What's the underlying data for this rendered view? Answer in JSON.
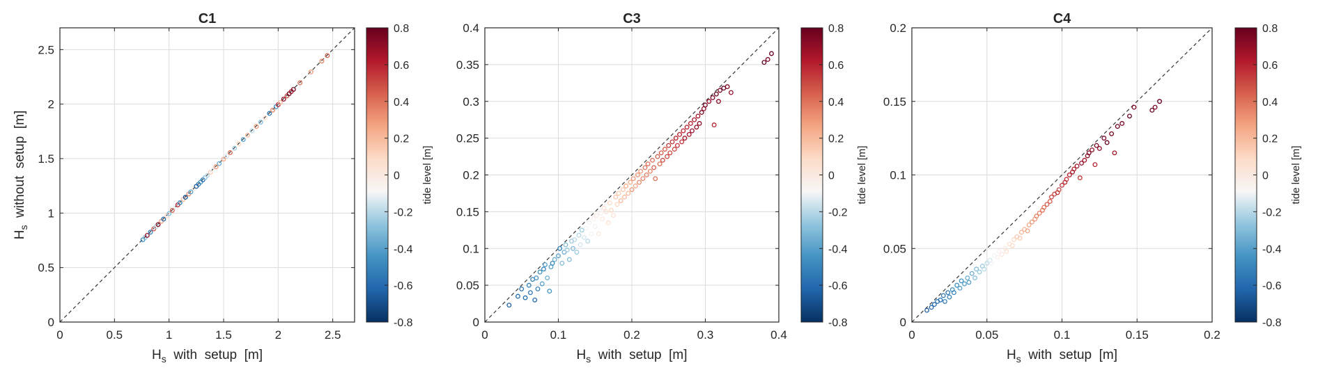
{
  "figure": {
    "colorbar": {
      "label": "tide level [m]",
      "range": [
        -0.8,
        0.8
      ],
      "ticks": [
        "-0.8",
        "-0.6",
        "-0.4",
        "-0.2",
        "0",
        "0.2",
        "0.4",
        "0.6",
        "0.8"
      ],
      "colormap": [
        "#053061",
        "#2166ac",
        "#4393c3",
        "#92c5de",
        "#f7f7f7",
        "#fddbc7",
        "#f4a582",
        "#d6604d",
        "#b2182b",
        "#67001f"
      ]
    }
  },
  "chart_data": [
    {
      "type": "scatter",
      "title": "C1",
      "xlabel": "Hs with setup [m]",
      "ylabel": "Hs without setup [m]",
      "xlim": [
        0,
        2.7
      ],
      "ylim": [
        0,
        2.7
      ],
      "xticks": [
        "0",
        "0.5",
        "1",
        "1.5",
        "2",
        "2.5"
      ],
      "yticks": [
        "0",
        "0.5",
        "1",
        "1.5",
        "2",
        "2.5"
      ],
      "xtick_values": [
        0,
        0.5,
        1,
        1.5,
        2,
        2.5
      ],
      "ytick_values": [
        0,
        0.5,
        1,
        1.5,
        2,
        2.5
      ],
      "grid": true,
      "reference_line": "y = x",
      "points": [
        [
          0.76,
          0.755,
          -0.45
        ],
        [
          0.78,
          0.775,
          -0.3
        ],
        [
          0.8,
          0.795,
          0.7
        ],
        [
          0.83,
          0.825,
          -0.5
        ],
        [
          0.86,
          0.855,
          0.5
        ],
        [
          0.88,
          0.875,
          -0.2
        ],
        [
          0.9,
          0.895,
          0.75
        ],
        [
          0.93,
          0.925,
          0.3
        ],
        [
          0.95,
          0.945,
          -0.6
        ],
        [
          0.98,
          0.975,
          0.1
        ],
        [
          1.0,
          0.995,
          -0.3
        ],
        [
          1.03,
          1.025,
          0.45
        ],
        [
          1.06,
          1.055,
          -0.1
        ],
        [
          1.08,
          1.075,
          0.6
        ],
        [
          1.1,
          1.095,
          -0.5
        ],
        [
          1.13,
          1.125,
          0.2
        ],
        [
          1.15,
          1.145,
          -0.7
        ],
        [
          1.18,
          1.175,
          0.35
        ],
        [
          1.2,
          1.195,
          -0.4
        ],
        [
          1.23,
          1.225,
          0.0
        ],
        [
          1.25,
          1.245,
          -0.65
        ],
        [
          1.27,
          1.265,
          -0.55
        ],
        [
          1.29,
          1.285,
          -0.45
        ],
        [
          1.31,
          1.305,
          -0.6
        ],
        [
          1.33,
          1.325,
          -0.3
        ],
        [
          1.35,
          1.345,
          -0.2
        ],
        [
          1.38,
          1.375,
          0.15
        ],
        [
          1.4,
          1.395,
          -0.1
        ],
        [
          1.43,
          1.425,
          0.3
        ],
        [
          1.46,
          1.455,
          -0.35
        ],
        [
          1.5,
          1.495,
          0.25
        ],
        [
          1.53,
          1.525,
          -0.15
        ],
        [
          1.56,
          1.555,
          0.4
        ],
        [
          1.6,
          1.595,
          -0.25
        ],
        [
          1.64,
          1.635,
          0.1
        ],
        [
          1.68,
          1.675,
          -0.4
        ],
        [
          1.72,
          1.715,
          0.2
        ],
        [
          1.76,
          1.755,
          -0.2
        ],
        [
          1.8,
          1.795,
          0.3
        ],
        [
          1.84,
          1.835,
          -0.3
        ],
        [
          1.88,
          1.875,
          0.05
        ],
        [
          1.92,
          1.915,
          -0.55
        ],
        [
          1.95,
          1.945,
          0.35
        ],
        [
          1.98,
          1.975,
          -0.45
        ],
        [
          2.0,
          1.995,
          0.6
        ],
        [
          2.02,
          2.015,
          0.2
        ],
        [
          2.05,
          2.045,
          0.7
        ],
        [
          2.08,
          2.075,
          0.5
        ],
        [
          2.1,
          2.095,
          0.8
        ],
        [
          2.12,
          2.115,
          0.65
        ],
        [
          2.14,
          2.135,
          0.75
        ],
        [
          2.2,
          2.195,
          0.4
        ],
        [
          2.3,
          2.295,
          0.3
        ],
        [
          2.4,
          2.395,
          0.35
        ],
        [
          2.45,
          2.445,
          0.45
        ]
      ]
    },
    {
      "type": "scatter",
      "title": "C3",
      "xlabel": "Hs with setup [m]",
      "ylabel": "",
      "xlim": [
        0,
        0.4
      ],
      "ylim": [
        0,
        0.4
      ],
      "xticks": [
        "0",
        "0.1",
        "0.2",
        "0.3",
        "0.4"
      ],
      "yticks": [
        "0",
        "0.05",
        "0.1",
        "0.15",
        "0.2",
        "0.25",
        "0.3",
        "0.35",
        "0.4"
      ],
      "xtick_values": [
        0,
        0.1,
        0.2,
        0.3,
        0.4
      ],
      "ytick_values": [
        0,
        0.05,
        0.1,
        0.15,
        0.2,
        0.25,
        0.3,
        0.35,
        0.4
      ],
      "grid": true,
      "reference_line": "y = x",
      "points": [
        [
          0.033,
          0.023,
          -0.65
        ],
        [
          0.045,
          0.035,
          -0.6
        ],
        [
          0.05,
          0.045,
          -0.55
        ],
        [
          0.055,
          0.033,
          -0.6
        ],
        [
          0.06,
          0.05,
          -0.5
        ],
        [
          0.062,
          0.04,
          -0.55
        ],
        [
          0.065,
          0.058,
          -0.5
        ],
        [
          0.068,
          0.03,
          -0.6
        ],
        [
          0.07,
          0.06,
          -0.45
        ],
        [
          0.072,
          0.045,
          -0.5
        ],
        [
          0.075,
          0.068,
          -0.45
        ],
        [
          0.078,
          0.052,
          -0.4
        ],
        [
          0.08,
          0.072,
          -0.5
        ],
        [
          0.082,
          0.078,
          -0.4
        ],
        [
          0.085,
          0.06,
          -0.35
        ],
        [
          0.088,
          0.042,
          -0.45
        ],
        [
          0.09,
          0.075,
          -0.4
        ],
        [
          0.092,
          0.08,
          -0.5
        ],
        [
          0.095,
          0.085,
          -0.35
        ],
        [
          0.1,
          0.09,
          -0.4
        ],
        [
          0.102,
          0.1,
          -0.5
        ],
        [
          0.105,
          0.08,
          -0.3
        ],
        [
          0.108,
          0.095,
          -0.35
        ],
        [
          0.11,
          0.105,
          -0.3
        ],
        [
          0.112,
          0.098,
          -0.25
        ],
        [
          0.115,
          0.085,
          -0.3
        ],
        [
          0.118,
          0.11,
          -0.25
        ],
        [
          0.12,
          0.1,
          -0.3
        ],
        [
          0.122,
          0.112,
          -0.2
        ],
        [
          0.125,
          0.095,
          -0.25
        ],
        [
          0.128,
          0.118,
          -0.2
        ],
        [
          0.13,
          0.105,
          -0.15
        ],
        [
          0.132,
          0.125,
          -0.25
        ],
        [
          0.135,
          0.115,
          -0.15
        ],
        [
          0.138,
          0.128,
          -0.1
        ],
        [
          0.14,
          0.11,
          -0.2
        ],
        [
          0.142,
          0.135,
          -0.1
        ],
        [
          0.145,
          0.12,
          -0.1
        ],
        [
          0.148,
          0.14,
          -0.05
        ],
        [
          0.15,
          0.13,
          -0.05
        ],
        [
          0.152,
          0.145,
          0.0
        ],
        [
          0.155,
          0.12,
          0.0
        ],
        [
          0.158,
          0.148,
          -0.05
        ],
        [
          0.16,
          0.14,
          0.0
        ],
        [
          0.162,
          0.155,
          0.05
        ],
        [
          0.165,
          0.15,
          0.05
        ],
        [
          0.168,
          0.135,
          0.05
        ],
        [
          0.17,
          0.162,
          0.1
        ],
        [
          0.172,
          0.152,
          0.1
        ],
        [
          0.175,
          0.145,
          0.05
        ],
        [
          0.178,
          0.17,
          0.15
        ],
        [
          0.18,
          0.16,
          0.1
        ],
        [
          0.182,
          0.175,
          0.15
        ],
        [
          0.185,
          0.165,
          0.2
        ],
        [
          0.188,
          0.18,
          0.15
        ],
        [
          0.19,
          0.17,
          0.2
        ],
        [
          0.192,
          0.185,
          0.25
        ],
        [
          0.195,
          0.175,
          0.2
        ],
        [
          0.198,
          0.19,
          0.25
        ],
        [
          0.2,
          0.18,
          0.3
        ],
        [
          0.202,
          0.195,
          0.3
        ],
        [
          0.205,
          0.185,
          0.25
        ],
        [
          0.208,
          0.2,
          0.3
        ],
        [
          0.21,
          0.19,
          0.35
        ],
        [
          0.212,
          0.205,
          0.3
        ],
        [
          0.215,
          0.195,
          0.35
        ],
        [
          0.218,
          0.21,
          0.4
        ],
        [
          0.22,
          0.2,
          0.35
        ],
        [
          0.222,
          0.215,
          0.4
        ],
        [
          0.225,
          0.205,
          0.35
        ],
        [
          0.228,
          0.22,
          0.4
        ],
        [
          0.23,
          0.21,
          0.45
        ],
        [
          0.232,
          0.195,
          0.4
        ],
        [
          0.235,
          0.225,
          0.45
        ],
        [
          0.238,
          0.215,
          0.4
        ],
        [
          0.24,
          0.23,
          0.45
        ],
        [
          0.242,
          0.22,
          0.5
        ],
        [
          0.245,
          0.235,
          0.45
        ],
        [
          0.248,
          0.225,
          0.5
        ],
        [
          0.25,
          0.24,
          0.55
        ],
        [
          0.252,
          0.23,
          0.5
        ],
        [
          0.255,
          0.245,
          0.55
        ],
        [
          0.258,
          0.235,
          0.5
        ],
        [
          0.26,
          0.25,
          0.6
        ],
        [
          0.262,
          0.24,
          0.55
        ],
        [
          0.265,
          0.255,
          0.6
        ],
        [
          0.268,
          0.245,
          0.55
        ],
        [
          0.27,
          0.26,
          0.6
        ],
        [
          0.272,
          0.25,
          0.65
        ],
        [
          0.275,
          0.265,
          0.6
        ],
        [
          0.278,
          0.255,
          0.65
        ],
        [
          0.28,
          0.27,
          0.6
        ],
        [
          0.282,
          0.26,
          0.7
        ],
        [
          0.285,
          0.275,
          0.65
        ],
        [
          0.288,
          0.265,
          0.7
        ],
        [
          0.29,
          0.28,
          0.65
        ],
        [
          0.292,
          0.27,
          0.7
        ],
        [
          0.295,
          0.285,
          0.75
        ],
        [
          0.298,
          0.29,
          0.7
        ],
        [
          0.3,
          0.295,
          0.75
        ],
        [
          0.305,
          0.3,
          0.7
        ],
        [
          0.31,
          0.305,
          0.75
        ],
        [
          0.312,
          0.268,
          0.6
        ],
        [
          0.315,
          0.31,
          0.8
        ],
        [
          0.318,
          0.3,
          0.7
        ],
        [
          0.32,
          0.315,
          0.75
        ],
        [
          0.325,
          0.318,
          0.8
        ],
        [
          0.33,
          0.32,
          0.75
        ],
        [
          0.335,
          0.312,
          0.7
        ],
        [
          0.38,
          0.353,
          0.8
        ],
        [
          0.385,
          0.357,
          0.75
        ],
        [
          0.39,
          0.365,
          0.8
        ]
      ]
    },
    {
      "type": "scatter",
      "title": "C4",
      "xlabel": "Hs with setup [m]",
      "ylabel": "",
      "xlim": [
        0,
        0.2
      ],
      "ylim": [
        0,
        0.2
      ],
      "xticks": [
        "0",
        "0.05",
        "0.1",
        "0.15",
        "0.2"
      ],
      "yticks": [
        "0",
        "0.05",
        "0.1",
        "0.15",
        "0.2"
      ],
      "xtick_values": [
        0,
        0.05,
        0.1,
        0.15,
        0.2
      ],
      "ytick_values": [
        0,
        0.05,
        0.1,
        0.15,
        0.2
      ],
      "grid": true,
      "reference_line": "y = x",
      "points": [
        [
          0.01,
          0.008,
          -0.65
        ],
        [
          0.013,
          0.01,
          -0.6
        ],
        [
          0.015,
          0.012,
          -0.6
        ],
        [
          0.017,
          0.014,
          -0.55
        ],
        [
          0.019,
          0.015,
          -0.6
        ],
        [
          0.021,
          0.018,
          -0.55
        ],
        [
          0.022,
          0.014,
          -0.5
        ],
        [
          0.024,
          0.02,
          -0.55
        ],
        [
          0.025,
          0.017,
          -0.5
        ],
        [
          0.027,
          0.022,
          -0.45
        ],
        [
          0.028,
          0.02,
          -0.5
        ],
        [
          0.03,
          0.025,
          -0.45
        ],
        [
          0.032,
          0.023,
          -0.4
        ],
        [
          0.033,
          0.028,
          -0.45
        ],
        [
          0.035,
          0.026,
          -0.4
        ],
        [
          0.037,
          0.03,
          -0.35
        ],
        [
          0.038,
          0.027,
          -0.4
        ],
        [
          0.04,
          0.033,
          -0.35
        ],
        [
          0.042,
          0.03,
          -0.3
        ],
        [
          0.043,
          0.036,
          -0.3
        ],
        [
          0.045,
          0.034,
          -0.25
        ],
        [
          0.047,
          0.038,
          -0.25
        ],
        [
          0.048,
          0.036,
          -0.2
        ],
        [
          0.05,
          0.04,
          -0.2
        ],
        [
          0.052,
          0.042,
          -0.15
        ],
        [
          0.053,
          0.04,
          -0.1
        ],
        [
          0.055,
          0.045,
          -0.1
        ],
        [
          0.057,
          0.044,
          -0.05
        ],
        [
          0.058,
          0.048,
          -0.05
        ],
        [
          0.06,
          0.046,
          0.0
        ],
        [
          0.062,
          0.05,
          0.0
        ],
        [
          0.063,
          0.048,
          0.05
        ],
        [
          0.065,
          0.053,
          0.05
        ],
        [
          0.067,
          0.052,
          0.1
        ],
        [
          0.068,
          0.056,
          0.1
        ],
        [
          0.07,
          0.058,
          0.15
        ],
        [
          0.072,
          0.057,
          0.15
        ],
        [
          0.073,
          0.061,
          0.2
        ],
        [
          0.075,
          0.063,
          0.2
        ],
        [
          0.077,
          0.062,
          0.25
        ],
        [
          0.078,
          0.066,
          0.25
        ],
        [
          0.08,
          0.068,
          0.3
        ],
        [
          0.082,
          0.07,
          0.3
        ],
        [
          0.083,
          0.072,
          0.35
        ],
        [
          0.085,
          0.074,
          0.35
        ],
        [
          0.087,
          0.076,
          0.4
        ],
        [
          0.088,
          0.078,
          0.4
        ],
        [
          0.09,
          0.08,
          0.45
        ],
        [
          0.092,
          0.082,
          0.45
        ],
        [
          0.093,
          0.085,
          0.5
        ],
        [
          0.095,
          0.087,
          0.5
        ],
        [
          0.097,
          0.088,
          0.55
        ],
        [
          0.098,
          0.09,
          0.5
        ],
        [
          0.1,
          0.093,
          0.55
        ],
        [
          0.102,
          0.095,
          0.6
        ],
        [
          0.103,
          0.097,
          0.55
        ],
        [
          0.105,
          0.1,
          0.6
        ],
        [
          0.107,
          0.102,
          0.65
        ],
        [
          0.108,
          0.104,
          0.6
        ],
        [
          0.11,
          0.106,
          0.65
        ],
        [
          0.112,
          0.098,
          0.55
        ],
        [
          0.113,
          0.108,
          0.7
        ],
        [
          0.115,
          0.11,
          0.65
        ],
        [
          0.117,
          0.113,
          0.7
        ],
        [
          0.118,
          0.115,
          0.75
        ],
        [
          0.12,
          0.117,
          0.7
        ],
        [
          0.122,
          0.107,
          0.6
        ],
        [
          0.123,
          0.12,
          0.75
        ],
        [
          0.125,
          0.118,
          0.7
        ],
        [
          0.128,
          0.125,
          0.75
        ],
        [
          0.13,
          0.122,
          0.8
        ],
        [
          0.133,
          0.128,
          0.75
        ],
        [
          0.135,
          0.115,
          0.65
        ],
        [
          0.137,
          0.133,
          0.8
        ],
        [
          0.14,
          0.135,
          0.75
        ],
        [
          0.145,
          0.14,
          0.8
        ],
        [
          0.148,
          0.146,
          0.75
        ],
        [
          0.16,
          0.144,
          0.8
        ],
        [
          0.162,
          0.146,
          0.75
        ],
        [
          0.165,
          0.15,
          0.8
        ]
      ]
    }
  ]
}
